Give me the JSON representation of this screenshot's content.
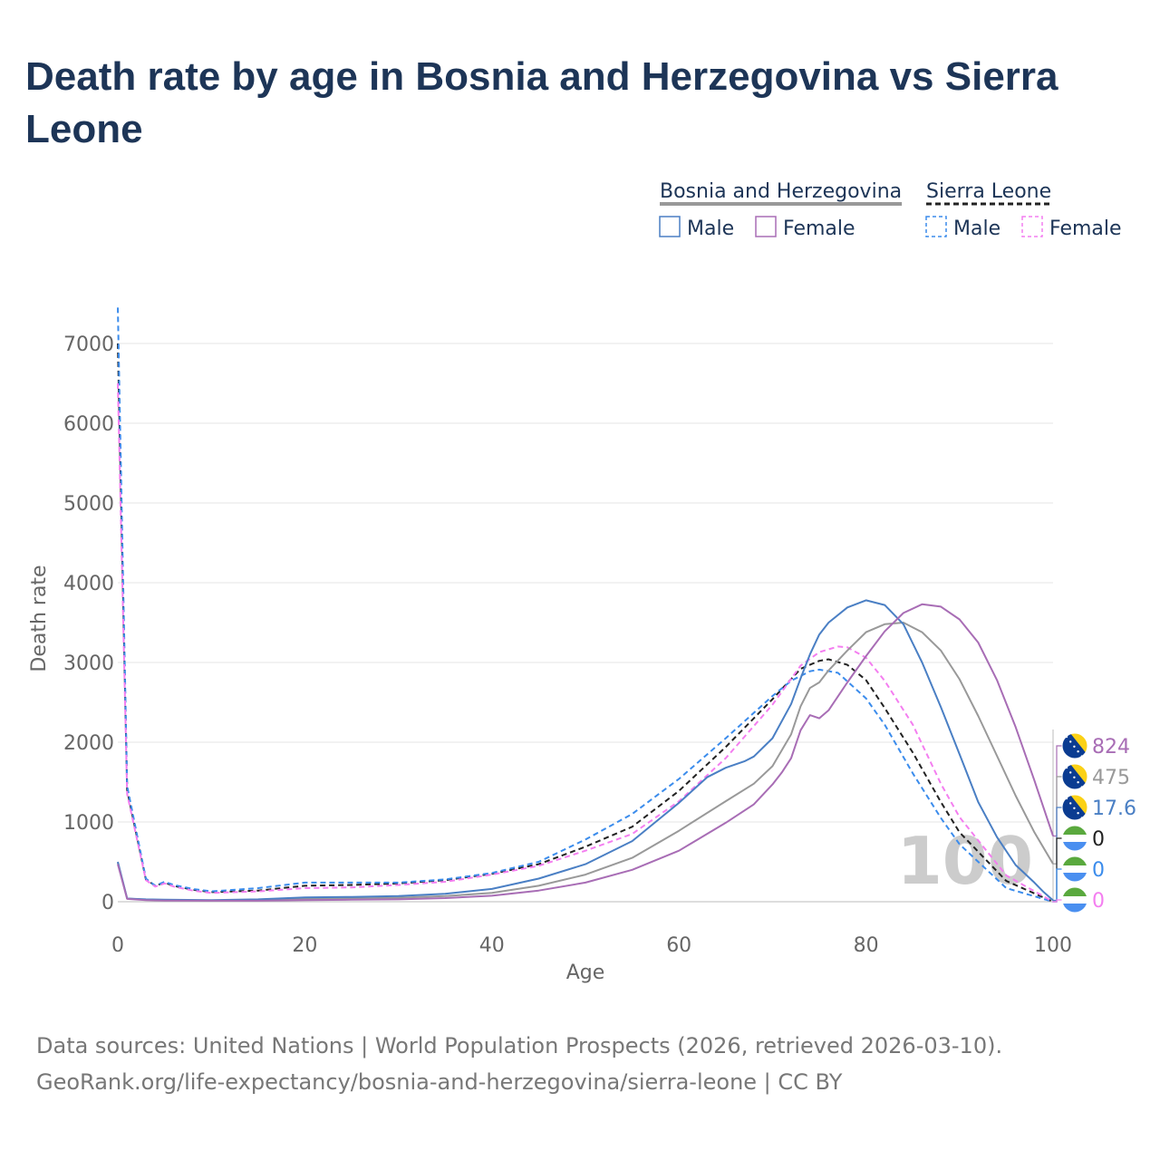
{
  "title": "Death rate by age in Bosnia and Herzegovina vs Sierra Leone",
  "footer": {
    "source": "Data sources: United Nations | World Population Prospects (2026, retrieved 2026-03-10).",
    "link": "GeoRank.org/life-expectancy/bosnia-and-herzegovina/sierra-leone | CC BY"
  },
  "legend": {
    "groups": [
      {
        "name": "Bosnia and Herzegovina",
        "style": "solid",
        "entries": [
          "Male",
          "Female"
        ]
      },
      {
        "name": "Sierra Leone",
        "style": "dashed",
        "entries": [
          "Male",
          "Female"
        ]
      }
    ]
  },
  "colors": {
    "bih_male": "#4a7fc4",
    "bih_female": "#a86db5",
    "bih_total": "#999999",
    "sle_male": "#3b8cec",
    "sle_female": "#f47ef0",
    "sle_total": "#222222",
    "title": "#1d3557",
    "flag_bih_blue": "#0b3c91",
    "flag_bih_yellow": "#fbd116",
    "flag_sle_green": "#5aa93e",
    "flag_sle_white": "#ffffff",
    "flag_sle_blue": "#4a8ff0"
  },
  "chart_data": {
    "type": "line",
    "title": "Death rate by age in Bosnia and Herzegovina vs Sierra Leone",
    "xlabel": "Age",
    "ylabel": "Death rate",
    "xlim": [
      0,
      100
    ],
    "ylim": [
      0,
      7450
    ],
    "xticks": [
      "0",
      "20",
      "40",
      "60",
      "80",
      "100"
    ],
    "yticks": [
      "0",
      "1000",
      "2000",
      "3000",
      "4000",
      "5000",
      "6000",
      "7000"
    ],
    "watermark": "100",
    "series": [
      {
        "name": "Sierra Leone Total",
        "key": "sle_total",
        "dash": true,
        "x": [
          0,
          1,
          3,
          4,
          5,
          6,
          8,
          10,
          15,
          20,
          25,
          30,
          35,
          40,
          45,
          50,
          55,
          60,
          65,
          70,
          73,
          75,
          76,
          78,
          80,
          82,
          85,
          88,
          90,
          95,
          100
        ],
        "y": [
          7000,
          1400,
          280,
          200,
          240,
          200,
          150,
          120,
          140,
          200,
          210,
          230,
          270,
          350,
          470,
          690,
          940,
          1390,
          1940,
          2540,
          2920,
          3020,
          3040,
          2970,
          2780,
          2430,
          1870,
          1250,
          870,
          260,
          0
        ]
      },
      {
        "name": "Sierra Leone Male",
        "key": "sle_male",
        "dash": true,
        "x": [
          0,
          1,
          3,
          4,
          5,
          6,
          8,
          10,
          15,
          20,
          25,
          30,
          35,
          40,
          45,
          50,
          55,
          60,
          65,
          70,
          72,
          74,
          75,
          77,
          80,
          82,
          85,
          88,
          90,
          95,
          100
        ],
        "y": [
          7450,
          1450,
          290,
          200,
          250,
          210,
          160,
          130,
          170,
          240,
          240,
          240,
          280,
          360,
          500,
          780,
          1100,
          1540,
          2050,
          2580,
          2770,
          2890,
          2910,
          2870,
          2550,
          2220,
          1610,
          1050,
          720,
          170,
          0
        ]
      },
      {
        "name": "Sierra Leone Female",
        "key": "sle_female",
        "dash": true,
        "x": [
          0,
          1,
          3,
          4,
          5,
          6,
          8,
          10,
          15,
          20,
          25,
          30,
          35,
          40,
          45,
          50,
          55,
          60,
          65,
          70,
          73,
          75,
          77,
          78,
          80,
          82,
          85,
          88,
          90,
          95,
          100
        ],
        "y": [
          6500,
          1350,
          270,
          190,
          230,
          190,
          140,
          110,
          130,
          170,
          180,
          210,
          250,
          340,
          450,
          640,
          850,
          1260,
          1800,
          2470,
          2960,
          3130,
          3200,
          3190,
          3060,
          2770,
          2220,
          1480,
          1060,
          330,
          0
        ]
      },
      {
        "name": "Bosnia and Herzegovina Total",
        "key": "bih_total",
        "dash": false,
        "x": [
          0,
          1,
          3,
          5,
          10,
          15,
          20,
          25,
          30,
          35,
          40,
          45,
          50,
          55,
          60,
          65,
          68,
          70,
          72,
          73,
          74,
          75,
          76,
          78,
          80,
          82,
          84,
          86,
          88,
          90,
          92,
          94,
          96,
          98,
          100
        ],
        "y": [
          490,
          40,
          25,
          20,
          15,
          20,
          35,
          40,
          50,
          70,
          110,
          200,
          340,
          550,
          890,
          1260,
          1480,
          1700,
          2100,
          2450,
          2680,
          2750,
          2900,
          3150,
          3380,
          3480,
          3500,
          3380,
          3150,
          2790,
          2330,
          1830,
          1330,
          870,
          475
        ]
      },
      {
        "name": "Bosnia and Herzegovina Male",
        "key": "bih_male",
        "dash": false,
        "x": [
          0,
          1,
          3,
          5,
          10,
          15,
          20,
          25,
          30,
          35,
          40,
          45,
          50,
          55,
          60,
          63,
          65,
          67,
          68,
          70,
          72,
          73,
          74,
          75,
          76,
          78,
          80,
          82,
          84,
          86,
          88,
          90,
          92,
          94,
          96,
          98,
          99,
          100
        ],
        "y": [
          500,
          40,
          30,
          25,
          20,
          30,
          55,
          60,
          70,
          100,
          160,
          290,
          470,
          760,
          1240,
          1560,
          1680,
          1760,
          1820,
          2050,
          2480,
          2800,
          3100,
          3350,
          3500,
          3690,
          3780,
          3720,
          3480,
          3000,
          2440,
          1850,
          1250,
          810,
          460,
          240,
          120,
          17.6
        ]
      },
      {
        "name": "Bosnia and Herzegovina Female",
        "key": "bih_female",
        "dash": false,
        "x": [
          0,
          1,
          3,
          5,
          10,
          15,
          20,
          25,
          30,
          35,
          40,
          45,
          50,
          55,
          60,
          65,
          68,
          70,
          71,
          72,
          73,
          74,
          75,
          76,
          78,
          80,
          82,
          84,
          86,
          88,
          90,
          92,
          94,
          96,
          98,
          100
        ],
        "y": [
          470,
          35,
          20,
          15,
          12,
          12,
          20,
          25,
          30,
          45,
          75,
          140,
          240,
          400,
          640,
          990,
          1220,
          1470,
          1620,
          1800,
          2150,
          2340,
          2300,
          2400,
          2750,
          3080,
          3390,
          3620,
          3730,
          3700,
          3540,
          3250,
          2780,
          2190,
          1520,
          824
        ]
      }
    ],
    "end_labels": [
      {
        "country": "Bosnia and Herzegovina",
        "key": "bih_female",
        "value": "824"
      },
      {
        "country": "Bosnia and Herzegovina",
        "key": "bih_total",
        "value": "475"
      },
      {
        "country": "Bosnia and Herzegovina",
        "key": "bih_male",
        "value": "17.6"
      },
      {
        "country": "Sierra Leone",
        "key": "sle_total",
        "value": "0"
      },
      {
        "country": "Sierra Leone",
        "key": "sle_male",
        "value": "0"
      },
      {
        "country": "Sierra Leone",
        "key": "sle_female",
        "value": "0"
      }
    ]
  }
}
